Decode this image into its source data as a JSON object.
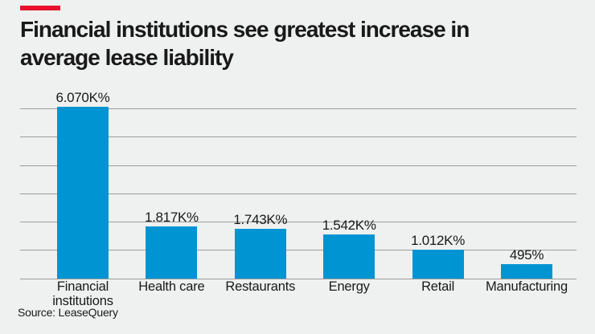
{
  "page": {
    "background_color": "#eff1f0",
    "accent_color": "#e8112d"
  },
  "header": {
    "title_line1": "Financial institutions see greatest increase in",
    "title_line2": "average lease liability"
  },
  "footer": {
    "source": "Source: LeaseQuery"
  },
  "chart_data": {
    "type": "bar",
    "title": "Financial institutions see greatest increase in average lease liability",
    "categories": [
      "Financial institutions",
      "Health care",
      "Restaurants",
      "Energy",
      "Retail",
      "Manufacturing"
    ],
    "values": [
      6070,
      1817,
      1743,
      1542,
      1012,
      495
    ],
    "value_labels": [
      "6.070K%",
      "1.817K%",
      "1.743K%",
      "1.542K%",
      "1.012K%",
      "495%"
    ],
    "xlabel": "",
    "ylabel": "",
    "ylim": [
      0,
      6000
    ],
    "grid_step": 1000,
    "grid": true,
    "y_tick_labels_visible": false,
    "legend": "none",
    "bar_color": "#0094d2",
    "gridline_color": "#9b9d9c",
    "text_color": "#191919"
  }
}
